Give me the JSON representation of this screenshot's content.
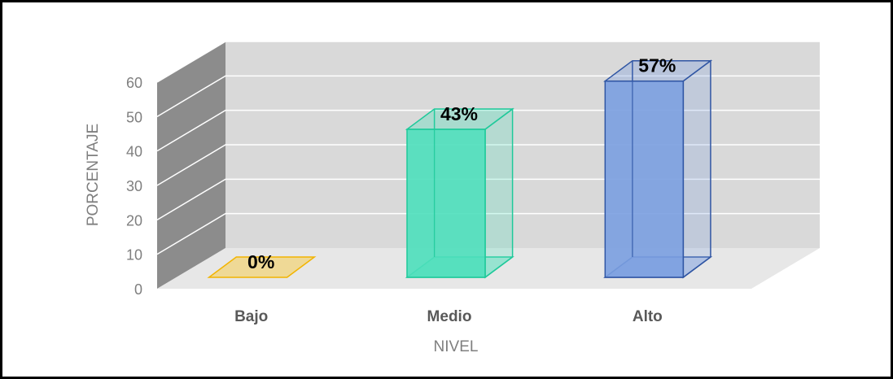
{
  "chart_data": {
    "type": "bar",
    "categories": [
      "Bajo",
      "Medio",
      "Alto"
    ],
    "values": [
      0,
      43,
      57
    ],
    "data_labels": [
      "0%",
      "43%",
      "57%"
    ],
    "xlabel": "NIVEL",
    "ylabel": "PORCENTAJE",
    "ylim": [
      0,
      60
    ],
    "yticks": [
      0,
      10,
      20,
      30,
      40,
      50,
      60
    ],
    "grid": true,
    "three_d": true,
    "colors": {
      "series": [
        "#ffc000",
        "#4ddfbb",
        "#7a9ee0"
      ],
      "series_edge": [
        "#f2b400",
        "#1fc99a",
        "#2f55a3"
      ],
      "side_wall": "#8c8c8c",
      "back_wall": "#d9d9d9",
      "floor": "#e7e7e7",
      "gridline": "#ffffff"
    }
  }
}
